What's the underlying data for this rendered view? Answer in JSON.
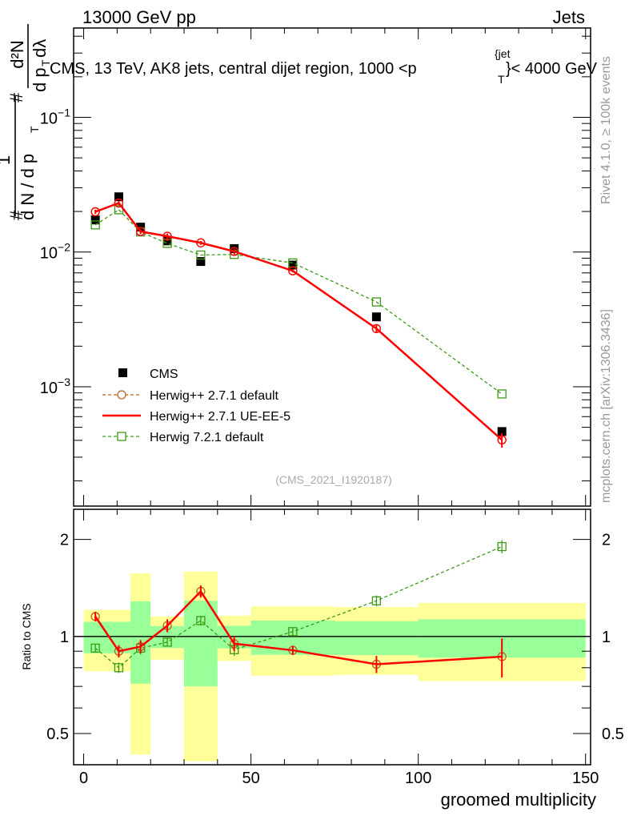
{
  "header": {
    "left": "13000 GeV pp",
    "right": "Jets"
  },
  "side_text": {
    "rivet": "Rivet 4.1.0, ≥ 100k events",
    "mcplots": "mcplots.cern.ch [arXiv:1306.3436]"
  },
  "watermark": "(CMS_2021_I1920187)",
  "colors": {
    "cms": "#000000",
    "herwig_default": "#b8631a",
    "herwig_uee5": "#ff0000",
    "herwig7": "#3c9a14",
    "band_yellow": "#ffff99",
    "band_green": "#99ff99"
  },
  "chart_data": [
    {
      "type": "scatter",
      "panel": "main",
      "title": "CMS, 13 TeV, AK8 jets, central dijet region, 1000 <p_T^{jet}< 4000 GeV",
      "title_parts": {
        "pre": "CMS, 13 TeV, AK8 jets, central dijet region, 1000 <p",
        "sup": "{jet",
        "sub": "T",
        "post": "}< 4000 GeV"
      },
      "ylabel": {
        "num1": "1",
        "den1": "d N / d p",
        "den1_sub": "T",
        "hash": "#",
        "num2": "d²N",
        "den2": "d p",
        "den2_sub": "T",
        "den2_post": " dλ"
      },
      "yscale": "log",
      "ylim": [
        0.00013,
        0.46
      ],
      "xlim": [
        -3,
        151.5
      ],
      "yticks": [
        {
          "v": 0.1,
          "base": "10",
          "exp": "−1"
        },
        {
          "v": 0.01,
          "base": "10",
          "exp": "−2"
        },
        {
          "v": 0.001,
          "base": "10",
          "exp": "−3"
        }
      ],
      "x": [
        3.5,
        10.5,
        17,
        25,
        35,
        45,
        62.5,
        87.5,
        125
      ],
      "legend": [
        {
          "name": "CMS"
        },
        {
          "name": "Herwig++ 2.7.1 default"
        },
        {
          "name": "Herwig++ 2.7.1 UE-EE-5"
        },
        {
          "name": "Herwig 7.2.1 default"
        }
      ],
      "series": [
        {
          "name": "CMS",
          "values": [
            0.0173,
            0.0257,
            0.0153,
            0.0121,
            0.0085,
            0.0106,
            0.008,
            0.0033,
            0.000465
          ]
        },
        {
          "name": "Herwig++ 2.7.1 default",
          "values": [
            0.0199,
            0.0231,
            0.0142,
            0.0131,
            0.0117,
            0.0101,
            0.00725,
            0.0027,
            0.000403
          ]
        },
        {
          "name": "Herwig++ 2.7.1 UE-EE-5",
          "values": [
            0.0199,
            0.0231,
            0.0142,
            0.0131,
            0.0117,
            0.0101,
            0.00725,
            0.0027,
            0.000403
          ],
          "errors": [
            0.0007,
            0.0008,
            0.0006,
            0.0006,
            0.0004,
            0.0005,
            0.0002,
            0.00016,
            5e-05
          ]
        },
        {
          "name": "Herwig 7.2.1 default",
          "values": [
            0.0159,
            0.0206,
            0.0141,
            0.0116,
            0.0095,
            0.0096,
            0.0083,
            0.00426,
            0.000884
          ]
        }
      ]
    },
    {
      "type": "scatter",
      "panel": "ratio",
      "ylabel": "Ratio to CMS",
      "xlabel": "groomed multiplicity",
      "yscale": "log",
      "ylim": [
        0.4,
        2.48
      ],
      "xlim": [
        -3,
        151.5
      ],
      "xticks": [
        0,
        50,
        100,
        150
      ],
      "yticks": [
        0.5,
        1,
        2
      ],
      "ytick_labels": [
        "0.5",
        "1",
        "2"
      ],
      "xtick_labels": [
        "0",
        "50",
        "100",
        "150"
      ],
      "x": [
        3.5,
        10.5,
        17,
        25,
        35,
        45,
        62.5,
        87.5,
        125
      ],
      "bands": {
        "bin_edges": [
          0,
          14,
          20,
          30,
          40,
          50,
          75,
          100,
          150
        ],
        "yellow_hi": [
          1.21,
          1.57,
          1.153,
          1.59,
          1.16,
          1.24,
          1.235,
          1.27
        ],
        "yellow_lo": [
          0.78,
          0.43,
          0.847,
          0.41,
          0.84,
          0.756,
          0.76,
          0.727
        ],
        "green_hi": [
          1.11,
          1.285,
          1.077,
          1.29,
          1.079,
          1.12,
          1.115,
          1.13
        ],
        "green_lo": [
          0.887,
          0.714,
          0.921,
          0.7,
          0.918,
          0.877,
          0.875,
          0.86
        ]
      },
      "series": [
        {
          "name": "Herwig++ 2.7.1 default",
          "values": [
            1.153,
            0.9,
            0.93,
            1.08,
            1.38,
            0.95,
            0.906,
            0.82,
            0.866
          ]
        },
        {
          "name": "Herwig++ 2.7.1 UE-EE-5",
          "values": [
            1.153,
            0.9,
            0.93,
            1.08,
            1.38,
            0.95,
            0.906,
            0.82,
            0.866
          ],
          "errors": [
            0.04,
            0.04,
            0.045,
            0.05,
            0.06,
            0.05,
            0.03,
            0.05,
            0.12
          ]
        },
        {
          "name": "Herwig 7.2.1 default",
          "values": [
            0.92,
            0.8,
            0.92,
            0.96,
            1.12,
            0.91,
            1.035,
            1.29,
            1.9
          ],
          "errors": [
            0.03,
            0.03,
            0.04,
            0.03,
            0.04,
            0.04,
            0.03,
            0.05,
            0.09
          ]
        }
      ]
    }
  ]
}
